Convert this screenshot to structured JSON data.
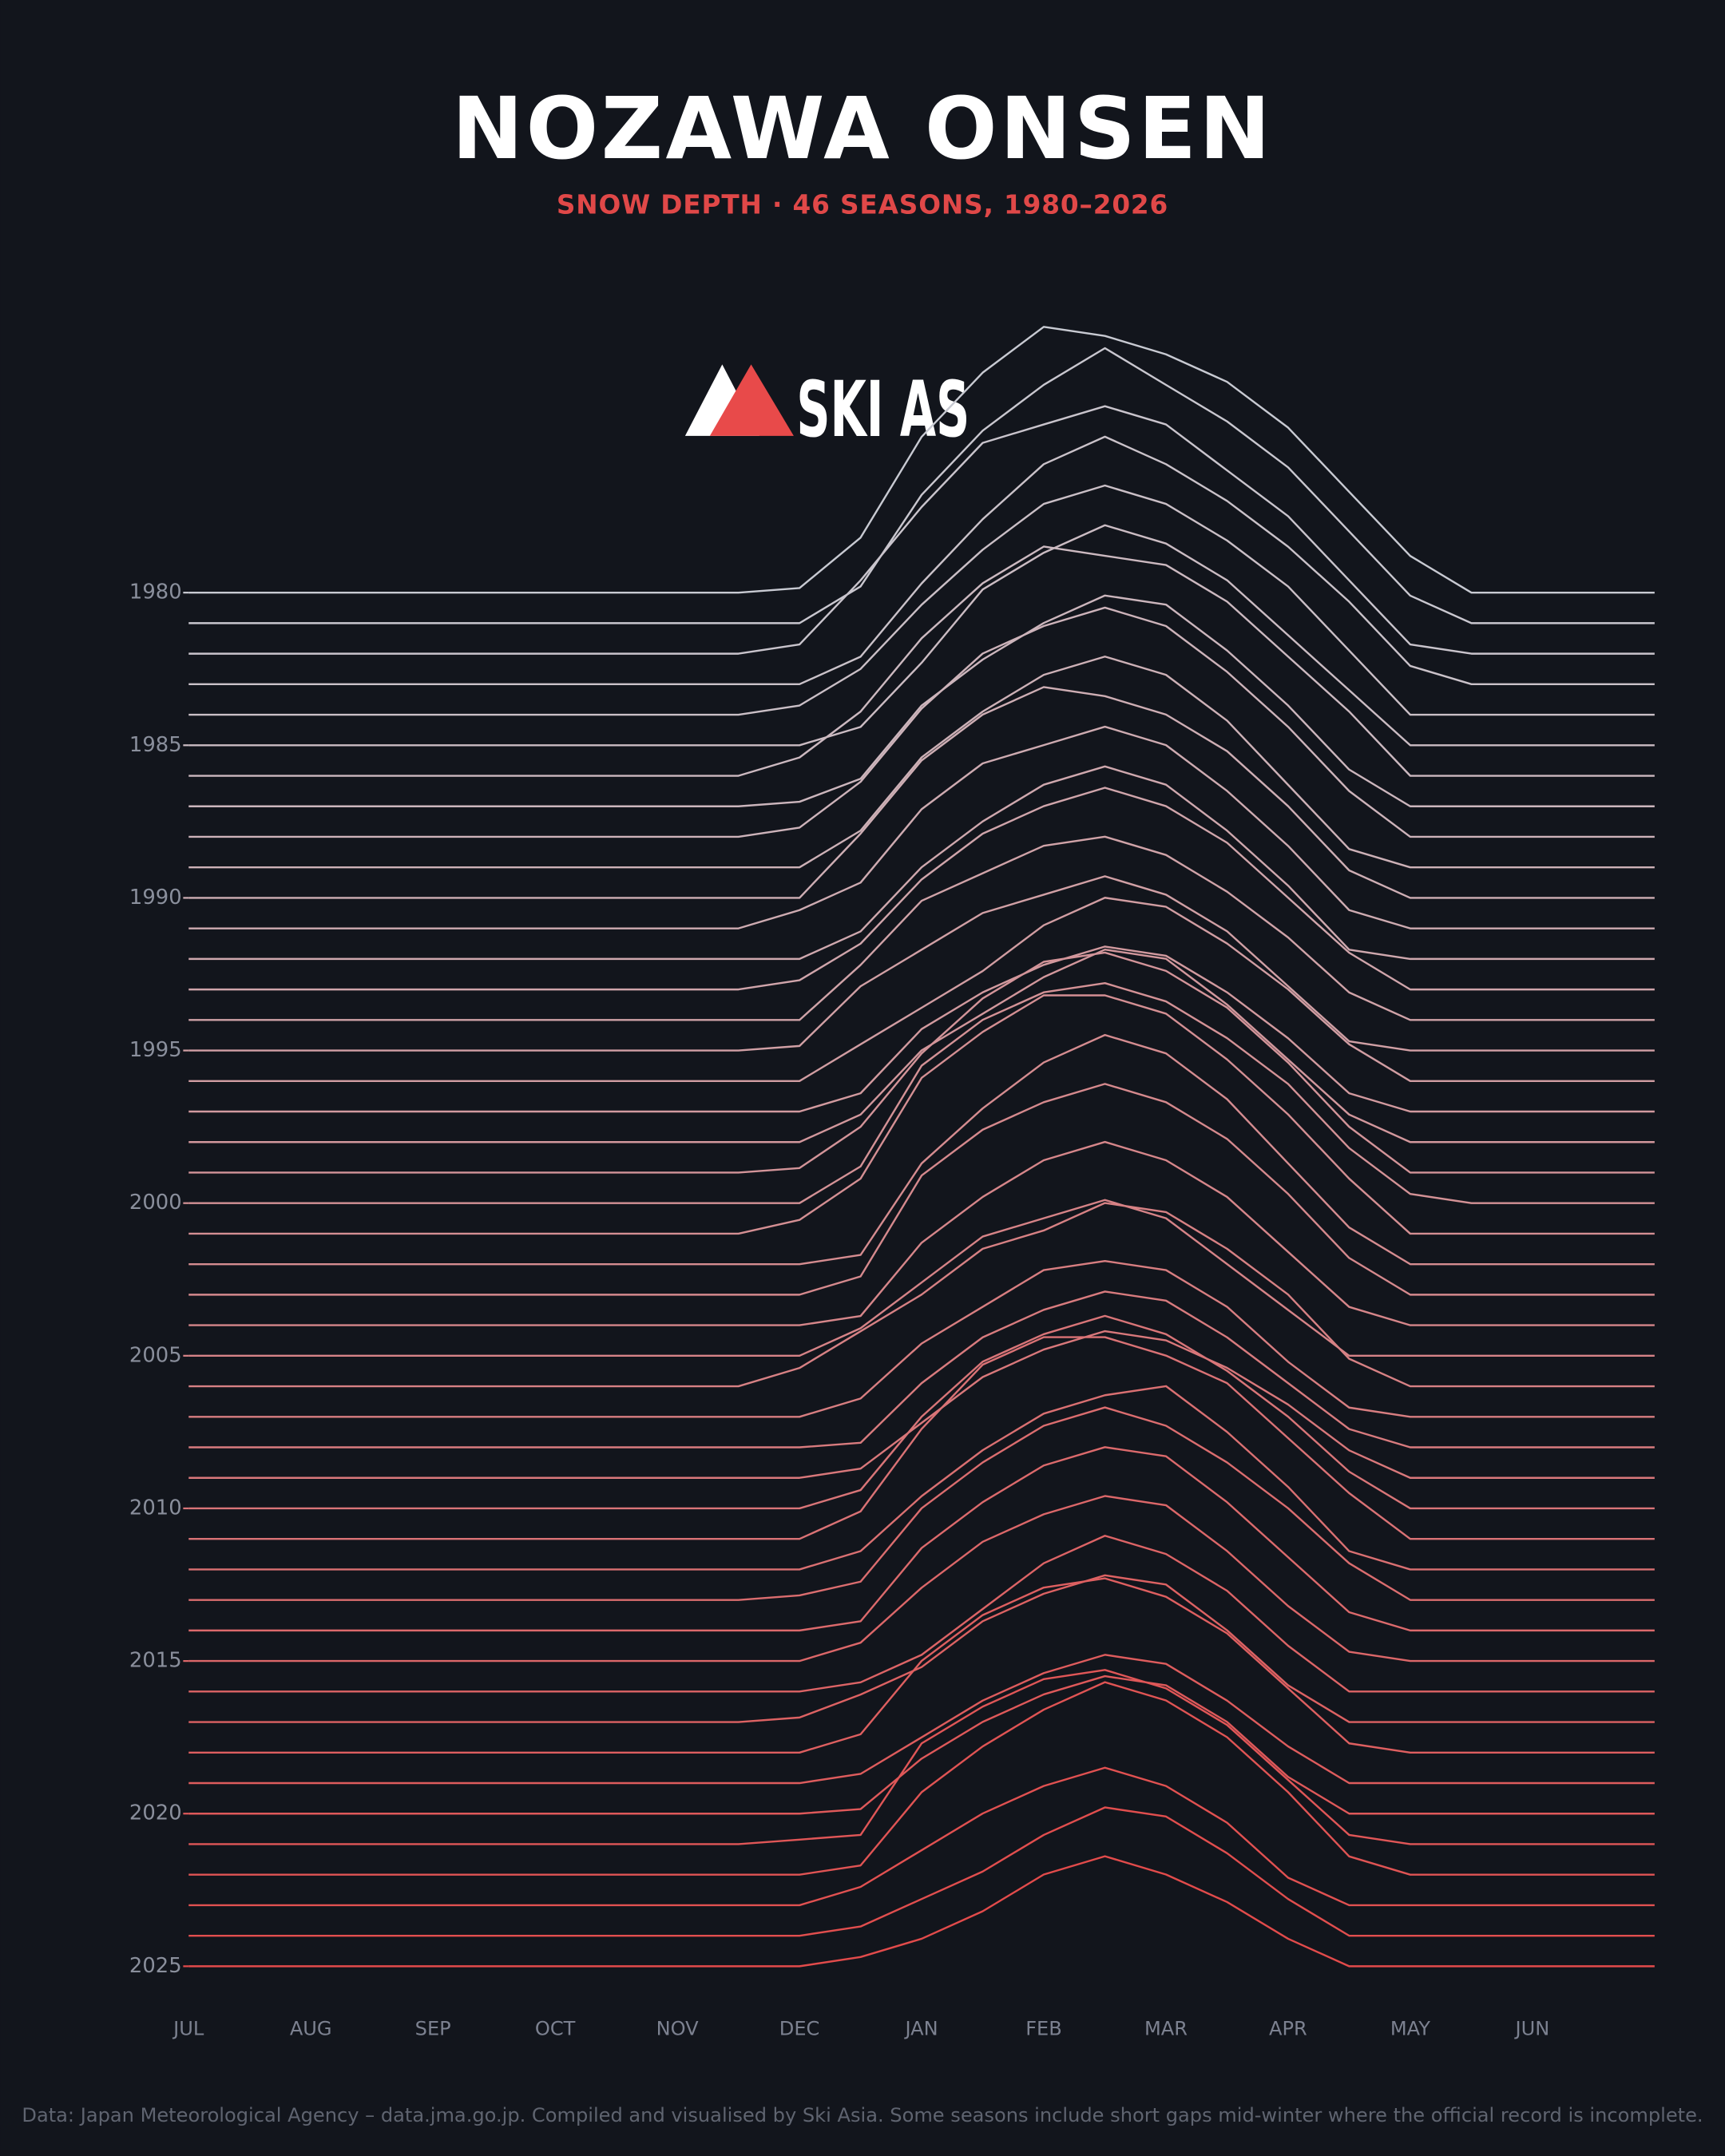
{
  "chart_data": {
    "type": "ridgeline",
    "title": "NOZAWA ONSEN",
    "subtitle": "SNOW DEPTH · 46 SEASONS, 1980–2026",
    "logo": "SKI AS",
    "source": "Data: Japan Meteorological Agency – data.jma.go.jp. Compiled and visualised by Ski Asia. Some seasons include short gaps mid-winter where the official record is incomplete.",
    "categories": [
      "1980",
      null,
      null,
      null,
      null,
      "1985",
      null,
      null,
      null,
      null,
      "1990",
      null,
      null,
      null,
      null,
      "1995",
      null,
      null,
      null,
      null,
      "2000",
      null,
      null,
      null,
      null,
      "2005",
      null,
      null,
      null,
      null,
      "2010",
      null,
      null,
      null,
      null,
      "2015",
      null,
      null,
      null,
      null,
      "2020",
      null,
      null,
      null,
      null,
      "2025"
    ],
    "xlim": [
      0,
      12
    ],
    "xticks": [
      {
        "value": 0,
        "label": "JUL"
      },
      {
        "value": 1,
        "label": "AUG"
      },
      {
        "value": 2,
        "label": "SEP"
      },
      {
        "value": 3,
        "label": "OCT"
      },
      {
        "value": 4,
        "label": "NOV"
      },
      {
        "value": 5,
        "label": "DEC"
      },
      {
        "value": 6,
        "label": "JAN"
      },
      {
        "value": 7,
        "label": "FEB"
      },
      {
        "value": 8,
        "label": "MAR"
      },
      {
        "value": 9,
        "label": "APR"
      },
      {
        "value": 10,
        "label": "MAY"
      },
      {
        "value": 11,
        "label": "JUN"
      }
    ],
    "x": [
      0,
      4.5,
      5,
      5.5,
      6,
      6.5,
      7,
      7.5,
      8,
      8.5,
      9,
      9.5,
      10,
      10.5,
      12
    ],
    "series": [
      {
        "color": "#c8cad2",
        "values": [
          0,
          0,
          5,
          60,
          170,
          240,
          290,
          280,
          260,
          230,
          180,
          110,
          40,
          0,
          0
        ]
      },
      {
        "color": "#c9c7cf",
        "values": [
          0,
          0,
          0,
          40,
          140,
          210,
          260,
          300,
          260,
          220,
          170,
          100,
          30,
          0,
          0
        ]
      },
      {
        "color": "#c9c4cc",
        "values": [
          0,
          0,
          10,
          80,
          160,
          230,
          250,
          270,
          250,
          200,
          150,
          80,
          10,
          0,
          0
        ]
      },
      {
        "color": "#cac2c9",
        "values": [
          0,
          0,
          0,
          30,
          110,
          180,
          240,
          270,
          240,
          200,
          150,
          90,
          20,
          0,
          0
        ]
      },
      {
        "color": "#cabfc6",
        "values": [
          0,
          0,
          10,
          50,
          120,
          180,
          230,
          250,
          230,
          190,
          140,
          70,
          0,
          0,
          0
        ]
      },
      {
        "color": "#cbbcc3",
        "values": [
          0,
          0,
          0,
          20,
          90,
          170,
          210,
          240,
          220,
          180,
          120,
          60,
          0,
          0,
          0
        ]
      },
      {
        "color": "#ccb9c0",
        "values": [
          0,
          0,
          20,
          70,
          150,
          210,
          250,
          240,
          230,
          190,
          130,
          70,
          0,
          0,
          0
        ]
      },
      {
        "color": "#ccb6bd",
        "values": [
          0,
          0,
          5,
          30,
          110,
          160,
          200,
          230,
          220,
          170,
          110,
          40,
          0,
          0,
          0
        ]
      },
      {
        "color": "#cdb3ba",
        "values": [
          0,
          0,
          10,
          60,
          140,
          200,
          230,
          250,
          230,
          180,
          120,
          50,
          0,
          0,
          0
        ]
      },
      {
        "color": "#cdb1b7",
        "values": [
          0,
          0,
          0,
          40,
          120,
          170,
          210,
          230,
          210,
          160,
          90,
          20,
          0,
          0,
          0
        ]
      },
      {
        "color": "#ceaeb4",
        "values": [
          0,
          0,
          0,
          70,
          150,
          200,
          230,
          220,
          200,
          160,
          100,
          30,
          0,
          0,
          0
        ]
      },
      {
        "color": "#ceabb1",
        "values": [
          0,
          0,
          20,
          50,
          130,
          180,
          200,
          220,
          200,
          150,
          90,
          20,
          0,
          0,
          0
        ]
      },
      {
        "color": "#cfa8ae",
        "values": [
          0,
          0,
          0,
          30,
          100,
          150,
          190,
          210,
          190,
          140,
          80,
          10,
          0,
          0,
          0
        ]
      },
      {
        "color": "#d0a5ab",
        "values": [
          0,
          0,
          10,
          50,
          120,
          170,
          200,
          220,
          200,
          160,
          100,
          40,
          0,
          0,
          0
        ]
      },
      {
        "color": "#d0a3a8",
        "values": [
          0,
          0,
          0,
          60,
          130,
          160,
          190,
          200,
          180,
          140,
          90,
          30,
          0,
          0,
          0
        ]
      },
      {
        "color": "#d1a0a5",
        "values": [
          0,
          0,
          5,
          70,
          110,
          150,
          170,
          190,
          170,
          130,
          70,
          10,
          0,
          0,
          0
        ]
      },
      {
        "color": "#d19da2",
        "values": [
          0,
          0,
          0,
          40,
          80,
          120,
          170,
          200,
          190,
          150,
          100,
          40,
          0,
          0,
          0
        ]
      },
      {
        "color": "#d29a9f",
        "values": [
          0,
          0,
          0,
          20,
          90,
          130,
          160,
          180,
          170,
          130,
          80,
          20,
          0,
          0,
          0
        ]
      },
      {
        "color": "#d2979c",
        "values": [
          0,
          0,
          0,
          30,
          100,
          140,
          180,
          210,
          200,
          150,
          90,
          30,
          0,
          0,
          0
        ]
      },
      {
        "color": "#d39499",
        "values": [
          0,
          0,
          5,
          50,
          130,
          190,
          230,
          240,
          220,
          180,
          120,
          50,
          0,
          0,
          0
        ]
      },
      {
        "color": "#d49296",
        "values": [
          0,
          0,
          0,
          40,
          150,
          200,
          230,
          240,
          220,
          180,
          130,
          60,
          10,
          0,
          0
        ]
      },
      {
        "color": "#d48f93",
        "values": [
          0,
          0,
          15,
          60,
          170,
          220,
          260,
          260,
          240,
          190,
          130,
          60,
          0,
          0,
          0
        ]
      },
      {
        "color": "#d58c90",
        "values": [
          0,
          0,
          0,
          10,
          110,
          170,
          220,
          250,
          230,
          180,
          110,
          40,
          0,
          0,
          0
        ]
      },
      {
        "color": "#d5898d",
        "values": [
          0,
          0,
          0,
          20,
          130,
          180,
          210,
          230,
          210,
          170,
          110,
          40,
          0,
          0,
          0
        ]
      },
      {
        "color": "#d6868a",
        "values": [
          0,
          0,
          0,
          10,
          90,
          140,
          180,
          200,
          180,
          140,
          80,
          20,
          0,
          0,
          0
        ]
      },
      {
        "color": "#d68387",
        "values": [
          0,
          0,
          0,
          30,
          80,
          130,
          150,
          170,
          150,
          100,
          50,
          0,
          0,
          0,
          0
        ]
      },
      {
        "color": "#d78184",
        "values": [
          0,
          0,
          20,
          60,
          100,
          150,
          170,
          200,
          190,
          150,
          100,
          30,
          0,
          0,
          0
        ]
      },
      {
        "color": "#d87e81",
        "values": [
          0,
          0,
          0,
          20,
          80,
          120,
          160,
          170,
          160,
          120,
          60,
          10,
          0,
          0,
          0
        ]
      },
      {
        "color": "#d87b7e",
        "values": [
          0,
          0,
          0,
          5,
          70,
          120,
          150,
          170,
          160,
          120,
          70,
          20,
          0,
          0,
          0
        ]
      },
      {
        "color": "#d9787b",
        "values": [
          0,
          0,
          0,
          10,
          60,
          110,
          140,
          160,
          150,
          120,
          80,
          30,
          0,
          0,
          0
        ]
      },
      {
        "color": "#d97578",
        "values": [
          0,
          0,
          0,
          20,
          100,
          160,
          190,
          210,
          190,
          150,
          100,
          40,
          0,
          0,
          0
        ]
      },
      {
        "color": "#da7275",
        "values": [
          0,
          0,
          0,
          30,
          120,
          190,
          220,
          220,
          200,
          170,
          110,
          50,
          0,
          0,
          0
        ]
      },
      {
        "color": "#da7072",
        "values": [
          0,
          0,
          0,
          20,
          80,
          130,
          170,
          190,
          200,
          150,
          90,
          20,
          0,
          0,
          0
        ]
      },
      {
        "color": "#db6d6f",
        "values": [
          0,
          0,
          5,
          20,
          100,
          150,
          190,
          210,
          190,
          150,
          100,
          40,
          0,
          0,
          0
        ]
      },
      {
        "color": "#dc6a6c",
        "values": [
          0,
          0,
          0,
          10,
          90,
          140,
          180,
          200,
          190,
          140,
          80,
          20,
          0,
          0,
          0
        ]
      },
      {
        "color": "#dc6769",
        "values": [
          0,
          0,
          0,
          20,
          80,
          130,
          160,
          180,
          170,
          120,
          60,
          10,
          0,
          0,
          0
        ]
      },
      {
        "color": "#dd6466",
        "values": [
          0,
          0,
          0,
          10,
          40,
          90,
          140,
          170,
          150,
          110,
          50,
          0,
          0,
          0,
          0
        ]
      },
      {
        "color": "#dd6263",
        "values": [
          0,
          0,
          5,
          30,
          60,
          110,
          140,
          160,
          150,
          100,
          40,
          0,
          0,
          0,
          0
        ]
      },
      {
        "color": "#de5f60",
        "values": [
          0,
          0,
          0,
          20,
          100,
          150,
          180,
          190,
          170,
          130,
          70,
          10,
          0,
          0,
          0
        ]
      },
      {
        "color": "#de5c5d",
        "values": [
          0,
          0,
          0,
          10,
          50,
          90,
          120,
          140,
          130,
          90,
          40,
          0,
          0,
          0,
          0
        ]
      },
      {
        "color": "#df595a",
        "values": [
          0,
          0,
          0,
          5,
          60,
          100,
          130,
          150,
          140,
          100,
          40,
          0,
          0,
          0,
          0
        ]
      },
      {
        "color": "#e05657",
        "values": [
          0,
          0,
          5,
          10,
          110,
          150,
          180,
          190,
          170,
          130,
          70,
          10,
          0,
          0,
          0
        ]
      },
      {
        "color": "#e05454",
        "values": [
          0,
          0,
          0,
          10,
          90,
          140,
          180,
          210,
          190,
          150,
          90,
          20,
          0,
          0,
          0
        ]
      },
      {
        "color": "#e15151",
        "values": [
          0,
          0,
          0,
          20,
          60,
          100,
          130,
          150,
          130,
          90,
          30,
          0,
          0,
          0,
          0
        ]
      },
      {
        "color": "#e14e4e",
        "values": [
          0,
          0,
          0,
          10,
          40,
          70,
          110,
          140,
          130,
          90,
          40,
          0,
          0,
          0,
          0
        ]
      },
      {
        "color": "#e24b4b",
        "values": [
          0,
          0,
          0,
          10,
          30,
          60,
          100,
          120,
          100,
          70,
          30,
          0,
          0,
          0,
          0
        ]
      }
    ]
  }
}
